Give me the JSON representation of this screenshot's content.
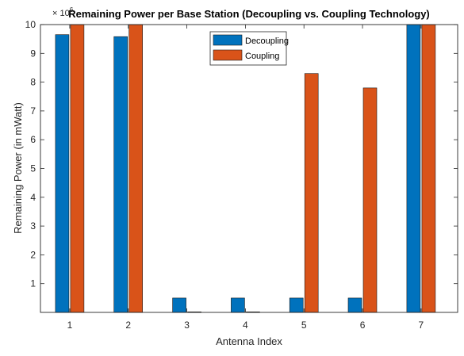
{
  "chart_data": {
    "type": "bar",
    "title": "Remaining Power per Base Station (Decoupling vs. Coupling Technology)",
    "xlabel": "Antenna Index",
    "ylabel": "Remaining Power (in mWatt)",
    "y_exponent_label": "× 10",
    "y_exponent_power": "6",
    "categories": [
      "1",
      "2",
      "3",
      "4",
      "5",
      "6",
      "7"
    ],
    "ylim": [
      0,
      10
    ],
    "yticks": [
      1,
      2,
      3,
      4,
      5,
      6,
      7,
      8,
      9,
      10
    ],
    "grid": false,
    "legend_position": "top-center",
    "series": [
      {
        "name": "Decoupling",
        "color": "#0072BD",
        "values": [
          9.65,
          9.58,
          0.5,
          0.5,
          0.5,
          0.5,
          10.0
        ]
      },
      {
        "name": "Coupling",
        "color": "#D95319",
        "values": [
          10.0,
          10.0,
          0.02,
          0.02,
          8.3,
          7.8,
          10.0
        ]
      }
    ]
  }
}
